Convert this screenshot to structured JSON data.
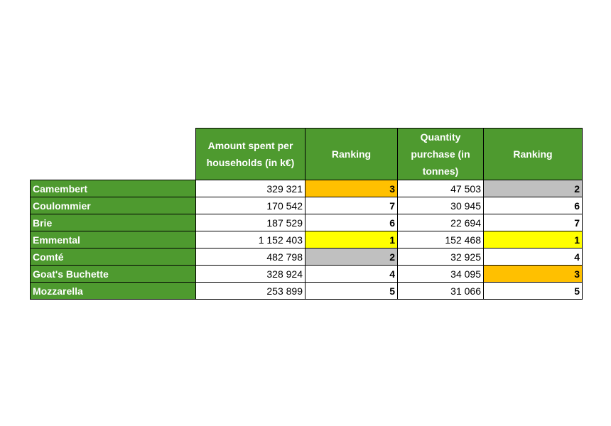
{
  "headers": {
    "amount": "Amount spent per households (in k€)",
    "rank1": "Ranking",
    "quantity": "Quantity purchase (in tonnes)",
    "rank2": "Ranking"
  },
  "colors": {
    "header_green": "#4e9a2f",
    "gold": "#ffc000",
    "silver": "#c0c0c0",
    "first": "#ffff00"
  },
  "rows": [
    {
      "name": "Camembert",
      "amount": "329 321",
      "rank1": "3",
      "rank1_color": "#ffc000",
      "quantity": "47 503",
      "rank2": "2",
      "rank2_color": "#c0c0c0"
    },
    {
      "name": "Coulommier",
      "amount": "170 542",
      "rank1": "7",
      "rank1_color": "",
      "quantity": "30 945",
      "rank2": "6",
      "rank2_color": ""
    },
    {
      "name": "Brie",
      "amount": "187 529",
      "rank1": "6",
      "rank1_color": "",
      "quantity": "22 694",
      "rank2": "7",
      "rank2_color": ""
    },
    {
      "name": "Emmental",
      "amount": "1 152 403",
      "rank1": "1",
      "rank1_color": "#ffff00",
      "quantity": "152 468",
      "rank2": "1",
      "rank2_color": "#ffff00"
    },
    {
      "name": "Comté",
      "amount": "482 798",
      "rank1": "2",
      "rank1_color": "#c0c0c0",
      "quantity": "32 925",
      "rank2": "4",
      "rank2_color": ""
    },
    {
      "name": "Goat's Buchette",
      "amount": "328 924",
      "rank1": "4",
      "rank1_color": "",
      "quantity": "34 095",
      "rank2": "3",
      "rank2_color": "#ffc000"
    },
    {
      "name": "Mozzarella",
      "amount": "253 899",
      "rank1": "5",
      "rank1_color": "",
      "quantity": "31 066",
      "rank2": "5",
      "rank2_color": ""
    }
  ]
}
